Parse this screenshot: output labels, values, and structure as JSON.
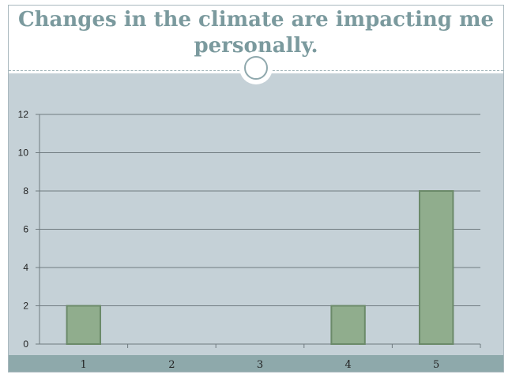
{
  "slide": {
    "title": "Changes in the climate are impacting me personally."
  },
  "colors": {
    "title": "#7b9a9e",
    "background": "#c5d1d7",
    "band": "#8ea9ab",
    "bar_fill": "#90ad8d",
    "bar_stroke": "#6b8a69",
    "gridline": "#6f7a7f"
  },
  "chart_data": {
    "type": "bar",
    "categories": [
      "1",
      "2",
      "3",
      "4",
      "5"
    ],
    "values": [
      2,
      0,
      0,
      2,
      8
    ],
    "title": "Changes in the climate are impacting me personally.",
    "xlabel": "",
    "ylabel": "",
    "ylim": [
      0,
      12
    ],
    "yticks": [
      "0",
      "2",
      "4",
      "6",
      "8",
      "10",
      "12"
    ],
    "grid": true,
    "legend": "none"
  }
}
